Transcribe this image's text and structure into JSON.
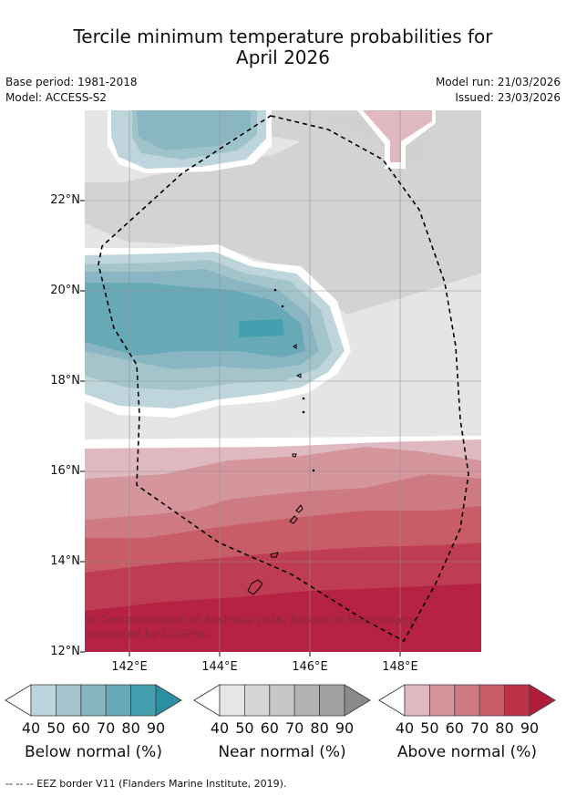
{
  "title_line1": "Tercile minimum temperature probabilities for",
  "title_line2": "April 2026",
  "base_period": "Base period: 1981-2018",
  "model": "Model: ACCESS-S2",
  "model_run": "Model run: 21/03/2026",
  "issued": "Issued: 23/03/2026",
  "lat_labels": [
    "22°N",
    "20°N",
    "18°N",
    "16°N",
    "14°N",
    "12°N"
  ],
  "lon_labels": [
    "142°E",
    "144°E",
    "146°E",
    "148°E"
  ],
  "copyright": "© Commonwealth of Australia 2026, Bureau of Meteorology, supported by COSPPac",
  "colorbars": [
    {
      "title": "Below normal (%)",
      "ticks": [
        "40",
        "50",
        "60",
        "70",
        "80",
        "90"
      ],
      "colors": [
        "#bcd5dc",
        "#a3c4cc",
        "#89b5c2",
        "#67a9b7",
        "#449faf",
        "#2a8fa2"
      ]
    },
    {
      "title": "Near normal (%)",
      "ticks": [
        "40",
        "50",
        "60",
        "70",
        "80",
        "90"
      ],
      "colors": [
        "#e6e6e6",
        "#d6d6d6",
        "#c6c6c6",
        "#b3b3b3",
        "#a0a0a0",
        "#8a8a8a"
      ]
    },
    {
      "title": "Above normal (%)",
      "ticks": [
        "40",
        "50",
        "60",
        "70",
        "80",
        "90"
      ],
      "colors": [
        "#e0b9c0",
        "#d5959c",
        "#cd7a83",
        "#c85d68",
        "#bc3148",
        "#b01c3c"
      ]
    }
  ],
  "footer": "--  --  -- EEZ border V11 (Flanders Marine Institute, 2019)."
}
